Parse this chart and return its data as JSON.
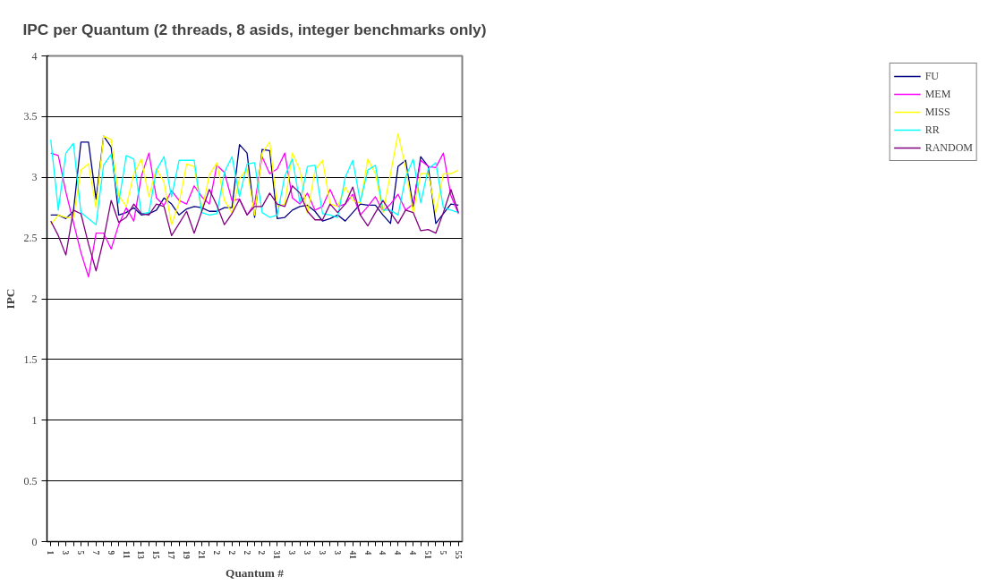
{
  "chart_data": {
    "type": "line",
    "title": "IPC per Quantum (2 threads, 8 asids, integer benchmarks only)",
    "xlabel": "Quantum #",
    "ylabel": "IPC",
    "categories": [
      "1",
      null,
      "3",
      null,
      "5",
      null,
      "7",
      null,
      "9",
      null,
      "11",
      null,
      "13",
      null,
      "15",
      null,
      "17",
      null,
      "19",
      null,
      "21",
      null,
      "2",
      null,
      "2",
      null,
      "2",
      null,
      "2",
      null,
      "31",
      null,
      "3",
      null,
      "3",
      null,
      "3",
      null,
      "3",
      null,
      "41",
      null,
      "4",
      null,
      "4",
      null,
      "4",
      null,
      "4",
      null,
      "51",
      null,
      "5",
      null,
      "55"
    ],
    "ylim": [
      0,
      4
    ],
    "yticks": [
      0,
      0.5,
      1,
      1.5,
      2,
      2.5,
      3,
      3.5,
      4
    ],
    "grid": "y",
    "legend": "right",
    "marker": "none",
    "line_style": "solid",
    "series": [
      {
        "name": "FU",
        "color": "#000080",
        "values": [
          2.69,
          2.69,
          2.66,
          2.72,
          3.29,
          3.29,
          2.82,
          3.34,
          3.25,
          2.69,
          2.71,
          2.75,
          2.69,
          2.7,
          2.73,
          2.83,
          2.78,
          2.69,
          2.74,
          2.76,
          2.75,
          2.72,
          2.72,
          2.75,
          2.75,
          3.27,
          3.2,
          2.67,
          3.23,
          3.22,
          2.66,
          2.67,
          2.73,
          2.76,
          2.77,
          2.72,
          2.64,
          2.66,
          2.69,
          2.64,
          2.71,
          2.78,
          2.77,
          2.77,
          2.69,
          2.62,
          3.09,
          3.14,
          2.76,
          3.17,
          3.09,
          2.62,
          2.7,
          2.78,
          2.77
        ]
      },
      {
        "name": "MEM",
        "color": "#ff00ff",
        "values": [
          3.2,
          3.18,
          2.88,
          2.63,
          2.38,
          2.18,
          2.54,
          2.54,
          2.41,
          2.61,
          2.75,
          2.64,
          3.01,
          3.2,
          2.83,
          2.77,
          2.89,
          2.81,
          2.78,
          2.93,
          2.84,
          2.78,
          3.1,
          3.04,
          2.81,
          2.82,
          2.69,
          2.78,
          3.17,
          3.03,
          3.07,
          3.2,
          2.83,
          2.78,
          2.87,
          2.73,
          2.76,
          2.9,
          2.76,
          2.78,
          2.86,
          2.69,
          2.76,
          2.84,
          2.72,
          2.78,
          2.86,
          2.73,
          2.78,
          3.14,
          3.09,
          3.08,
          3.2,
          2.85,
          2.7
        ]
      },
      {
        "name": "MISS",
        "color": "#ffff00",
        "values": [
          2.61,
          2.69,
          2.67,
          2.67,
          3.06,
          3.11,
          2.75,
          3.34,
          3.31,
          2.85,
          2.76,
          3.03,
          3.15,
          2.84,
          3.07,
          2.96,
          2.61,
          2.79,
          3.11,
          3.09,
          2.72,
          3.02,
          3.12,
          2.81,
          2.71,
          2.99,
          3.07,
          2.69,
          3.2,
          3.29,
          2.76,
          2.78,
          3.2,
          3.06,
          2.7,
          3.06,
          3.14,
          2.78,
          2.76,
          2.92,
          2.81,
          2.79,
          3.15,
          3.03,
          2.71,
          3.03,
          3.36,
          3.08,
          2.71,
          3.03,
          3.03,
          2.71,
          3.03,
          3.03,
          3.06
        ]
      },
      {
        "name": "RR",
        "color": "#00ffff",
        "values": [
          3.31,
          2.73,
          3.2,
          3.28,
          2.71,
          2.66,
          2.61,
          3.1,
          3.19,
          2.79,
          3.18,
          3.15,
          2.7,
          2.71,
          3.06,
          3.17,
          2.84,
          3.14,
          3.14,
          3.14,
          2.71,
          2.69,
          2.7,
          3.04,
          3.17,
          2.84,
          3.11,
          3.12,
          2.71,
          2.67,
          2.69,
          3.01,
          3.15,
          2.79,
          3.09,
          3.1,
          2.7,
          2.69,
          2.67,
          3.0,
          3.14,
          2.8,
          3.06,
          3.1,
          2.73,
          2.73,
          2.69,
          3.0,
          3.15,
          2.79,
          3.07,
          3.12,
          2.75,
          2.73,
          2.71
        ]
      },
      {
        "name": "RANDOM",
        "color": "#800080",
        "values": [
          2.64,
          2.52,
          2.36,
          2.73,
          2.7,
          2.45,
          2.23,
          2.49,
          2.81,
          2.63,
          2.67,
          2.78,
          2.7,
          2.69,
          2.78,
          2.76,
          2.52,
          2.62,
          2.72,
          2.54,
          2.72,
          2.9,
          2.77,
          2.61,
          2.7,
          2.82,
          2.69,
          2.76,
          2.76,
          2.87,
          2.78,
          2.76,
          2.93,
          2.87,
          2.72,
          2.65,
          2.65,
          2.78,
          2.71,
          2.78,
          2.92,
          2.69,
          2.6,
          2.71,
          2.81,
          2.71,
          2.62,
          2.73,
          2.71,
          2.56,
          2.57,
          2.54,
          2.71,
          2.9,
          2.71
        ]
      }
    ]
  }
}
